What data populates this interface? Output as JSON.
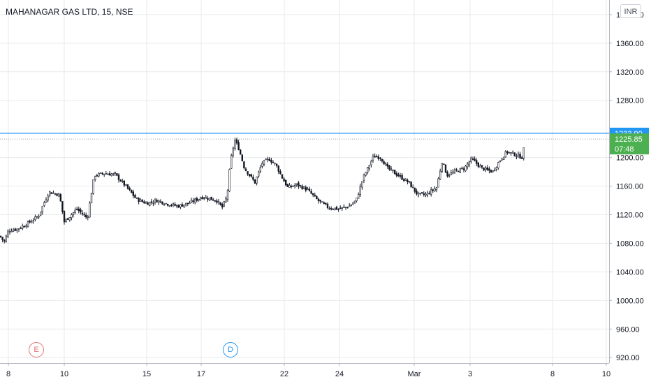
{
  "header": {
    "title": "MAHANAGAR GAS LTD, 15, NSE",
    "currency": "INR"
  },
  "events": [
    {
      "label": "E",
      "color": "#e57373"
    },
    {
      "label": "D",
      "color": "#2196f3"
    }
  ],
  "colors": {
    "up": "#26a69a",
    "down": "#ef5350",
    "candle_body": "#131722",
    "horizontal_line": "#2196f3",
    "last_price_box": "#4caf50",
    "hline_box": "#2196f3",
    "grid": "#e8eaed",
    "axis_text": "#131722"
  },
  "chart_data": {
    "type": "candlestick",
    "title": "MAHANAGAR GAS LTD, 15, NSE",
    "ylim": [
      905,
      1415
    ],
    "y_ticks": [
      1400,
      1360,
      1320,
      1280,
      1200,
      1160,
      1120,
      1080,
      1040,
      1000,
      960,
      920
    ],
    "y_tick_labels": [
      "1400.00",
      "1360.00",
      "1320.00",
      "1280.00",
      "1200.00",
      "1160.00",
      "1120.00",
      "1080.00",
      "1040.00",
      "1000.00",
      "960.00",
      "920.00"
    ],
    "x_labels": [
      "8",
      "10",
      "15",
      "17",
      "22",
      "24",
      "Mar",
      "3",
      "8",
      "10"
    ],
    "horizontal_line": {
      "value": 1233.9,
      "label": "1233.90"
    },
    "last_price": {
      "value": 1225.85,
      "label": "1225.85",
      "countdown": "07:48"
    },
    "grid": true,
    "close_path": [
      [
        0,
        1090
      ],
      [
        6,
        1082
      ],
      [
        12,
        1098
      ],
      [
        25,
        1100
      ],
      [
        40,
        1108
      ],
      [
        55,
        1118
      ],
      [
        70,
        1152
      ],
      [
        85,
        1148
      ],
      [
        92,
        1110
      ],
      [
        110,
        1128
      ],
      [
        125,
        1115
      ],
      [
        135,
        1175
      ],
      [
        150,
        1178
      ],
      [
        165,
        1176
      ],
      [
        180,
        1160
      ],
      [
        195,
        1142
      ],
      [
        210,
        1136
      ],
      [
        225,
        1140
      ],
      [
        240,
        1135
      ],
      [
        255,
        1132
      ],
      [
        270,
        1136
      ],
      [
        290,
        1145
      ],
      [
        310,
        1140
      ],
      [
        318,
        1130
      ],
      [
        325,
        1145
      ],
      [
        330,
        1195
      ],
      [
        336,
        1225
      ],
      [
        342,
        1212
      ],
      [
        350,
        1185
      ],
      [
        365,
        1165
      ],
      [
        375,
        1192
      ],
      [
        385,
        1198
      ],
      [
        395,
        1190
      ],
      [
        405,
        1170
      ],
      [
        412,
        1158
      ],
      [
        425,
        1162
      ],
      [
        440,
        1155
      ],
      [
        455,
        1140
      ],
      [
        470,
        1130
      ],
      [
        485,
        1128
      ],
      [
        500,
        1132
      ],
      [
        510,
        1140
      ],
      [
        520,
        1172
      ],
      [
        535,
        1202
      ],
      [
        545,
        1200
      ],
      [
        555,
        1185
      ],
      [
        570,
        1175
      ],
      [
        585,
        1165
      ],
      [
        598,
        1148
      ],
      [
        610,
        1148
      ],
      [
        625,
        1158
      ],
      [
        633,
        1195
      ],
      [
        640,
        1175
      ],
      [
        650,
        1180
      ],
      [
        665,
        1185
      ],
      [
        675,
        1198
      ],
      [
        690,
        1185
      ],
      [
        705,
        1180
      ],
      [
        715,
        1195
      ],
      [
        725,
        1208
      ],
      [
        735,
        1205
      ],
      [
        748,
        1200
      ],
      [
        752,
        1225
      ]
    ]
  }
}
